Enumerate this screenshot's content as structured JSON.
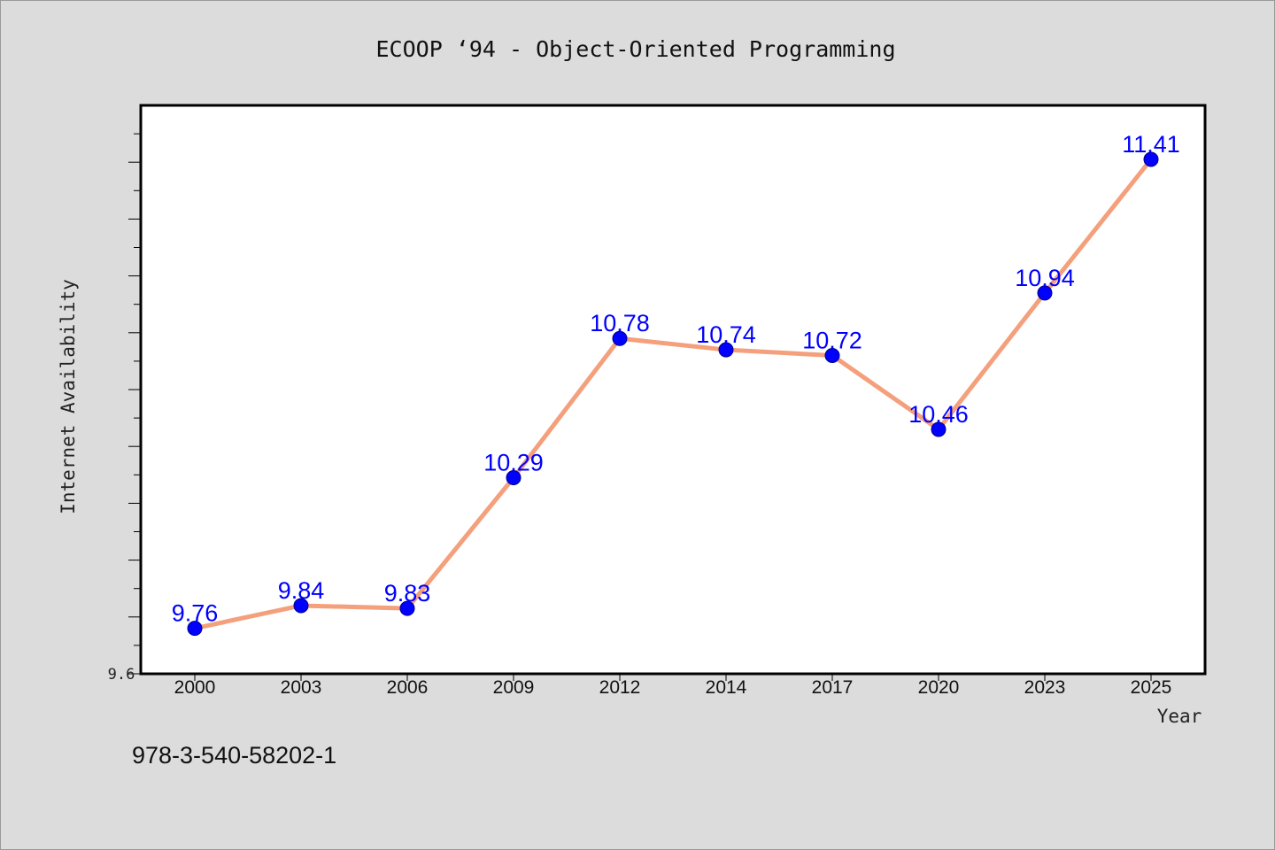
{
  "caption": "978-3-540-58202-1",
  "chart_data": {
    "type": "line",
    "title": "ECOOP  ‘94 - Object-Oriented Programming",
    "xlabel": "Year",
    "ylabel": "Internet Availability",
    "categories": [
      "2000",
      "2003",
      "2006",
      "2009",
      "2012",
      "2014",
      "2017",
      "2020",
      "2023",
      "2025"
    ],
    "series": [
      {
        "values": [
          9.76,
          9.84,
          9.83,
          10.29,
          10.78,
          10.74,
          10.72,
          10.46,
          10.94,
          11.41
        ],
        "labels": [
          "9.76",
          "9.84",
          "9.83",
          "10.29",
          "10.78",
          "10.74",
          "10.72",
          "10.46",
          "10.94",
          "11.41"
        ],
        "line_color": "#f4a07c",
        "marker_color": "#0000ff"
      }
    ],
    "yticks_labeled": [
      "9.6"
    ],
    "ylim": [
      9.6,
      11.6
    ],
    "grid": false,
    "legend": "none"
  }
}
